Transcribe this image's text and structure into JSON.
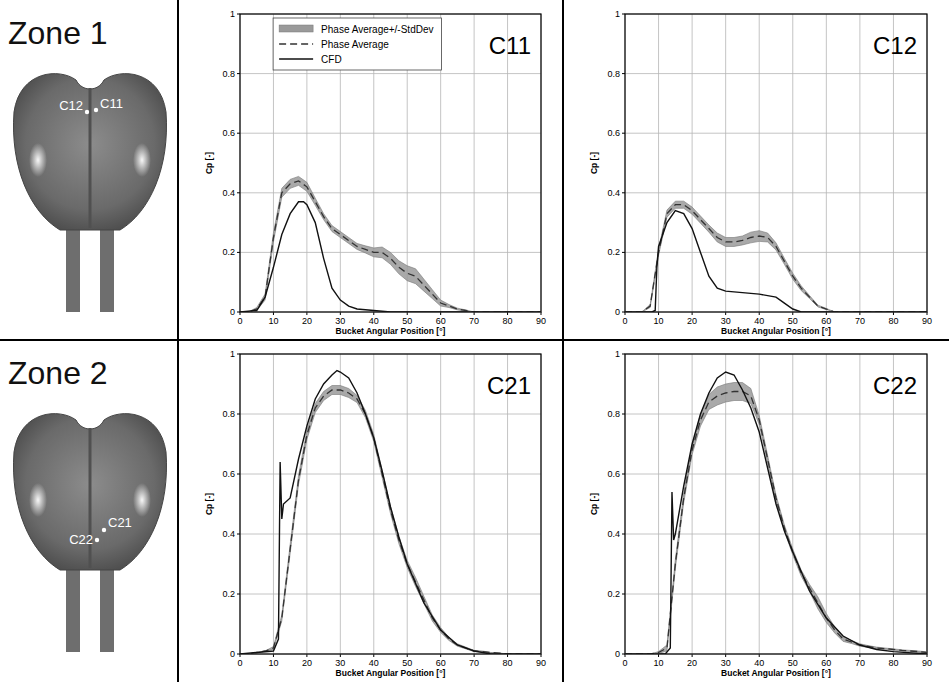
{
  "zones": [
    {
      "label": "Zone 1",
      "sensors": [
        "C12",
        "C11"
      ]
    },
    {
      "label": "Zone 2",
      "sensors": [
        "C21",
        "C22"
      ]
    }
  ],
  "chart_data": [
    {
      "type": "line",
      "title": "C11",
      "xlabel": "Bucket Angular Position [°]",
      "ylabel": "Cp [-]",
      "xlim": [
        0,
        90
      ],
      "ylim": [
        0,
        1
      ],
      "xticks": [
        0,
        10,
        20,
        30,
        40,
        50,
        60,
        70,
        80,
        90
      ],
      "yticks": [
        0,
        0.2,
        0.4,
        0.6,
        0.8,
        1
      ],
      "grid": true,
      "legend": "upper left",
      "x": [
        0,
        2.5,
        5,
        7.5,
        10,
        12.5,
        15,
        17.5,
        20,
        22.5,
        25,
        27.5,
        30,
        32.5,
        35,
        37.5,
        40,
        42.5,
        45,
        47.5,
        50,
        52.5,
        55,
        57.5,
        60,
        62.5,
        65,
        67.5,
        70,
        72.5,
        75,
        77.5,
        80,
        82.5,
        85,
        87.5,
        90
      ],
      "series": [
        {
          "name": "Phase Average+/-StdDev",
          "type": "band",
          "color": "#9a9a9a",
          "values": [
            0,
            0,
            0.01,
            0.05,
            0.25,
            0.4,
            0.43,
            0.44,
            0.42,
            0.37,
            0.32,
            0.28,
            0.26,
            0.24,
            0.22,
            0.21,
            0.2,
            0.2,
            0.18,
            0.15,
            0.13,
            0.12,
            0.09,
            0.06,
            0.03,
            0.02,
            0.01,
            0.005,
            0,
            0,
            0,
            0,
            0,
            0,
            0,
            0,
            0
          ],
          "std": [
            0,
            0,
            0.005,
            0.01,
            0.015,
            0.015,
            0.015,
            0.015,
            0.015,
            0.012,
            0.01,
            0.01,
            0.01,
            0.01,
            0.01,
            0.012,
            0.015,
            0.018,
            0.02,
            0.022,
            0.025,
            0.025,
            0.02,
            0.015,
            0.01,
            0.005,
            0.003,
            0.002,
            0,
            0,
            0,
            0,
            0,
            0,
            0,
            0,
            0
          ]
        },
        {
          "name": "Phase Average",
          "type": "line",
          "color": "#333333",
          "line_style": "dashed",
          "values": [
            0,
            0,
            0.01,
            0.05,
            0.25,
            0.4,
            0.43,
            0.44,
            0.42,
            0.37,
            0.32,
            0.28,
            0.26,
            0.24,
            0.22,
            0.21,
            0.2,
            0.2,
            0.18,
            0.15,
            0.13,
            0.12,
            0.09,
            0.06,
            0.03,
            0.02,
            0.01,
            0.005,
            0,
            0,
            0,
            0,
            0,
            0,
            0,
            0,
            0
          ]
        },
        {
          "name": "CFD",
          "type": "line",
          "color": "#111111",
          "line_style": "solid",
          "x": [
            0,
            5,
            7.5,
            10,
            12.5,
            15,
            17.5,
            19,
            20,
            22.5,
            25,
            27.5,
            30,
            32.5,
            35,
            40,
            45,
            90
          ],
          "values": [
            0,
            0.005,
            0.05,
            0.15,
            0.26,
            0.33,
            0.37,
            0.37,
            0.36,
            0.3,
            0.18,
            0.08,
            0.04,
            0.02,
            0.01,
            0.005,
            0,
            0
          ]
        }
      ]
    },
    {
      "type": "line",
      "title": "C12",
      "xlabel": "Bucket Angular Position [°]",
      "ylabel": "Cp [-]",
      "xlim": [
        0,
        90
      ],
      "ylim": [
        0,
        1
      ],
      "xticks": [
        0,
        10,
        20,
        30,
        40,
        50,
        60,
        70,
        80,
        90
      ],
      "yticks": [
        0,
        0.2,
        0.4,
        0.6,
        0.8,
        1
      ],
      "grid": true,
      "x": [
        0,
        2.5,
        5,
        7.5,
        10,
        12.5,
        15,
        17.5,
        20,
        22.5,
        25,
        27.5,
        30,
        32.5,
        35,
        37.5,
        40,
        42.5,
        45,
        47.5,
        50,
        52.5,
        55,
        57.5,
        60,
        62.5,
        65,
        67.5,
        70,
        72.5,
        75,
        77.5,
        80,
        82.5,
        85,
        87.5,
        90
      ],
      "series": [
        {
          "type": "band",
          "color": "#9a9a9a",
          "values": [
            0,
            0,
            0,
            0.02,
            0.2,
            0.33,
            0.36,
            0.36,
            0.34,
            0.31,
            0.28,
            0.25,
            0.235,
            0.235,
            0.24,
            0.25,
            0.255,
            0.25,
            0.22,
            0.17,
            0.12,
            0.08,
            0.05,
            0.02,
            0.01,
            0,
            0,
            0,
            0,
            0,
            0,
            0,
            0,
            0,
            0,
            0,
            0
          ],
          "std": [
            0,
            0,
            0,
            0.005,
            0.01,
            0.012,
            0.012,
            0.012,
            0.012,
            0.012,
            0.012,
            0.015,
            0.015,
            0.015,
            0.015,
            0.018,
            0.018,
            0.015,
            0.012,
            0.01,
            0.01,
            0.008,
            0.005,
            0.003,
            0.002,
            0,
            0,
            0,
            0,
            0,
            0,
            0,
            0,
            0,
            0,
            0,
            0
          ]
        },
        {
          "type": "line",
          "color": "#333333",
          "line_style": "dashed",
          "values": [
            0,
            0,
            0,
            0.02,
            0.2,
            0.33,
            0.36,
            0.36,
            0.34,
            0.31,
            0.28,
            0.25,
            0.235,
            0.235,
            0.24,
            0.25,
            0.255,
            0.25,
            0.22,
            0.17,
            0.12,
            0.08,
            0.05,
            0.02,
            0.01,
            0,
            0,
            0,
            0,
            0,
            0,
            0,
            0,
            0,
            0,
            0,
            0
          ]
        },
        {
          "type": "line",
          "color": "#111111",
          "line_style": "solid",
          "x": [
            0,
            8,
            9,
            9.5,
            10,
            12.5,
            15,
            17.5,
            20,
            22.5,
            25,
            27.5,
            30,
            35,
            40,
            45,
            47.5,
            50,
            52.5,
            90
          ],
          "values": [
            0,
            0,
            0.005,
            0.15,
            0.22,
            0.3,
            0.34,
            0.33,
            0.28,
            0.2,
            0.12,
            0.08,
            0.07,
            0.065,
            0.06,
            0.05,
            0.03,
            0.01,
            0,
            0
          ]
        }
      ]
    },
    {
      "type": "line",
      "title": "C21",
      "xlabel": "Bucket Angular Position [°]",
      "ylabel": "Cp [-]",
      "xlim": [
        0,
        90
      ],
      "ylim": [
        0,
        1
      ],
      "xticks": [
        0,
        10,
        20,
        30,
        40,
        50,
        60,
        70,
        80,
        90
      ],
      "yticks": [
        0,
        0.2,
        0.4,
        0.6,
        0.8,
        1
      ],
      "grid": true,
      "x": [
        0,
        2.5,
        5,
        7.5,
        10,
        12.5,
        15,
        17.5,
        20,
        22.5,
        25,
        27.5,
        30,
        32.5,
        35,
        37.5,
        40,
        42.5,
        45,
        47.5,
        50,
        52.5,
        55,
        57.5,
        60,
        62.5,
        65,
        67.5,
        70,
        72.5,
        75,
        77.5,
        80,
        82.5,
        85,
        87.5,
        90
      ],
      "series": [
        {
          "type": "band",
          "color": "#9a9a9a",
          "values": [
            0,
            0,
            0.005,
            0.01,
            0.02,
            0.12,
            0.35,
            0.58,
            0.73,
            0.82,
            0.86,
            0.88,
            0.88,
            0.87,
            0.85,
            0.8,
            0.72,
            0.6,
            0.48,
            0.38,
            0.3,
            0.24,
            0.18,
            0.12,
            0.08,
            0.05,
            0.03,
            0.02,
            0.01,
            0.008,
            0.005,
            0.003,
            0,
            0,
            0,
            0,
            0
          ],
          "std": [
            0,
            0,
            0,
            0,
            0.005,
            0.01,
            0.015,
            0.015,
            0.015,
            0.015,
            0.015,
            0.015,
            0.015,
            0.015,
            0.012,
            0.012,
            0.012,
            0.012,
            0.012,
            0.012,
            0.012,
            0.015,
            0.012,
            0.01,
            0.008,
            0.005,
            0.004,
            0.003,
            0.002,
            0.002,
            0,
            0,
            0,
            0,
            0,
            0,
            0
          ]
        },
        {
          "type": "line",
          "color": "#333333",
          "line_style": "dashed",
          "values": [
            0,
            0,
            0.005,
            0.01,
            0.02,
            0.12,
            0.35,
            0.58,
            0.73,
            0.82,
            0.86,
            0.88,
            0.88,
            0.87,
            0.85,
            0.8,
            0.72,
            0.6,
            0.48,
            0.38,
            0.3,
            0.24,
            0.18,
            0.12,
            0.08,
            0.05,
            0.03,
            0.02,
            0.01,
            0.008,
            0.005,
            0.003,
            0,
            0,
            0,
            0,
            0
          ]
        },
        {
          "type": "line",
          "color": "#111111",
          "line_style": "solid",
          "x": [
            0,
            10,
            11.5,
            12,
            12.5,
            13,
            15,
            17.5,
            20,
            22.5,
            25,
            27.5,
            29,
            30,
            32.5,
            35,
            37.5,
            40,
            42.5,
            45,
            47.5,
            50,
            55,
            60,
            65,
            70,
            75,
            90
          ],
          "values": [
            0,
            0.01,
            0.05,
            0.64,
            0.45,
            0.5,
            0.52,
            0.65,
            0.76,
            0.85,
            0.9,
            0.93,
            0.945,
            0.94,
            0.92,
            0.87,
            0.8,
            0.72,
            0.61,
            0.49,
            0.39,
            0.3,
            0.17,
            0.08,
            0.03,
            0.01,
            0,
            0
          ]
        }
      ]
    },
    {
      "type": "line",
      "title": "C22",
      "xlabel": "Bucket Angular Position [°]",
      "ylabel": "Cp [-]",
      "xlim": [
        0,
        90
      ],
      "ylim": [
        0,
        1
      ],
      "xticks": [
        0,
        10,
        20,
        30,
        40,
        50,
        60,
        70,
        80,
        90
      ],
      "yticks": [
        0,
        0.2,
        0.4,
        0.6,
        0.8,
        1
      ],
      "grid": true,
      "x": [
        0,
        2.5,
        5,
        7.5,
        10,
        12.5,
        15,
        17.5,
        20,
        22.5,
        25,
        27.5,
        30,
        32.5,
        35,
        37.5,
        40,
        42.5,
        45,
        47.5,
        50,
        52.5,
        55,
        57.5,
        60,
        62.5,
        65,
        67.5,
        70,
        72.5,
        75,
        77.5,
        80,
        82.5,
        85,
        87.5,
        90
      ],
      "series": [
        {
          "type": "band",
          "color": "#9a9a9a",
          "values": [
            0,
            0,
            0,
            0,
            0.005,
            0.02,
            0.3,
            0.52,
            0.68,
            0.78,
            0.84,
            0.86,
            0.87,
            0.875,
            0.875,
            0.86,
            0.78,
            0.65,
            0.52,
            0.42,
            0.34,
            0.27,
            0.22,
            0.17,
            0.12,
            0.08,
            0.05,
            0.04,
            0.03,
            0.025,
            0.02,
            0.018,
            0.015,
            0.012,
            0.01,
            0.008,
            0.005
          ],
          "std": [
            0,
            0,
            0,
            0,
            0.003,
            0.01,
            0.015,
            0.015,
            0.015,
            0.02,
            0.025,
            0.03,
            0.03,
            0.03,
            0.03,
            0.025,
            0.015,
            0.012,
            0.01,
            0.01,
            0.01,
            0.01,
            0.012,
            0.02,
            0.015,
            0.01,
            0.008,
            0.005,
            0.004,
            0.003,
            0.003,
            0.002,
            0.002,
            0.002,
            0.002,
            0.002,
            0.002
          ]
        },
        {
          "type": "line",
          "color": "#333333",
          "line_style": "dashed",
          "values": [
            0,
            0,
            0,
            0,
            0.005,
            0.02,
            0.3,
            0.52,
            0.68,
            0.78,
            0.84,
            0.86,
            0.87,
            0.875,
            0.875,
            0.86,
            0.78,
            0.65,
            0.52,
            0.42,
            0.34,
            0.27,
            0.22,
            0.17,
            0.12,
            0.08,
            0.05,
            0.04,
            0.03,
            0.025,
            0.02,
            0.018,
            0.015,
            0.012,
            0.01,
            0.008,
            0.005
          ]
        },
        {
          "type": "line",
          "color": "#111111",
          "line_style": "solid",
          "x": [
            0,
            12,
            13.5,
            14,
            14.5,
            15,
            17.5,
            20,
            22.5,
            25,
            27.5,
            30,
            32.5,
            35,
            37.5,
            40,
            42.5,
            45,
            47.5,
            50,
            55,
            60,
            65,
            70,
            75,
            80,
            90
          ],
          "values": [
            0,
            0,
            0.02,
            0.54,
            0.38,
            0.4,
            0.56,
            0.7,
            0.8,
            0.87,
            0.92,
            0.94,
            0.93,
            0.88,
            0.82,
            0.74,
            0.62,
            0.5,
            0.41,
            0.34,
            0.21,
            0.12,
            0.06,
            0.03,
            0.015,
            0.008,
            0
          ]
        }
      ]
    }
  ]
}
